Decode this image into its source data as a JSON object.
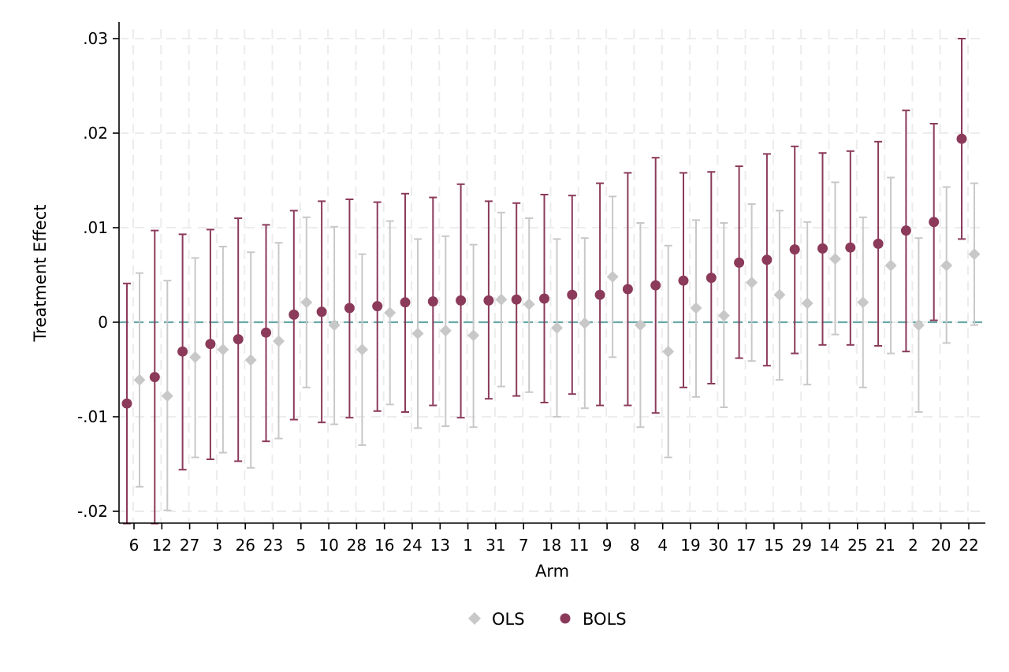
{
  "chart_data": {
    "type": "scatter",
    "subtype": "coefficient plot with 95% intervals",
    "xlabel": "Arm",
    "ylabel": "Treatment Effect",
    "categories": [
      "6",
      "12",
      "27",
      "3",
      "26",
      "23",
      "5",
      "10",
      "28",
      "16",
      "24",
      "13",
      "1",
      "31",
      "7",
      "18",
      "11",
      "9",
      "8",
      "4",
      "19",
      "30",
      "17",
      "15",
      "29",
      "14",
      "25",
      "21",
      "2",
      "20",
      "22"
    ],
    "ylim": [
      -0.021,
      0.0315
    ],
    "y_ticks": [
      -0.02,
      -0.01,
      0,
      0.01,
      0.02,
      0.03
    ],
    "y_tick_labels": [
      "-.02",
      "-.01",
      "0",
      ".01",
      ".02",
      ".03"
    ],
    "grid": true,
    "reference_line": 0,
    "legend_position": "bottom",
    "series": [
      {
        "name": "OLS",
        "marker": "diamond",
        "color": "#c8c8c8",
        "values": [
          -0.0061,
          -0.0078,
          -0.0037,
          -0.0029,
          -0.004,
          -0.002,
          0.0021,
          -0.0003,
          -0.0029,
          0.001,
          -0.0012,
          -0.0009,
          -0.0014,
          0.0024,
          0.0019,
          -0.0006,
          -0.0001,
          0.0048,
          -0.0003,
          -0.0031,
          0.0015,
          0.0007,
          0.0042,
          0.0029,
          0.002,
          0.0067,
          0.0021,
          0.006,
          -0.0003,
          0.006,
          0.0072
        ],
        "lower": [
          -0.0174,
          -0.0199,
          -0.0143,
          -0.0138,
          -0.0154,
          -0.0123,
          -0.0069,
          -0.0108,
          -0.013,
          -0.0087,
          -0.0112,
          -0.011,
          -0.0111,
          -0.0068,
          -0.0074,
          -0.01,
          -0.0091,
          -0.0037,
          -0.0111,
          -0.0143,
          -0.0079,
          -0.009,
          -0.0041,
          -0.0061,
          -0.0066,
          -0.0013,
          -0.0069,
          -0.0033,
          -0.0095,
          -0.0022,
          -0.0003
        ],
        "upper": [
          0.0052,
          0.0044,
          0.0068,
          0.008,
          0.0074,
          0.0084,
          0.0111,
          0.0101,
          0.0072,
          0.0107,
          0.0088,
          0.0091,
          0.0082,
          0.0116,
          0.011,
          0.0088,
          0.0089,
          0.0133,
          0.0105,
          0.0081,
          0.0108,
          0.0105,
          0.0125,
          0.0118,
          0.0106,
          0.0148,
          0.0111,
          0.0153,
          0.0089,
          0.0143,
          0.0147
        ]
      },
      {
        "name": "BOLS",
        "marker": "circle",
        "color": "#8b3a5a",
        "values": [
          -0.0086,
          -0.0058,
          -0.0031,
          -0.0023,
          -0.0018,
          -0.0011,
          0.0008,
          0.0011,
          0.0015,
          0.0017,
          0.0021,
          0.0022,
          0.0023,
          0.0023,
          0.0024,
          0.0025,
          0.0029,
          0.0029,
          0.0035,
          0.0039,
          0.0044,
          0.0047,
          0.0063,
          0.0066,
          0.0077,
          0.0078,
          0.0079,
          0.0083,
          0.0097,
          0.0106,
          0.0194
        ],
        "lower": [
          -0.0213,
          -0.0213,
          -0.0156,
          -0.0145,
          -0.0147,
          -0.0126,
          -0.0103,
          -0.0106,
          -0.0101,
          -0.0094,
          -0.0095,
          -0.0088,
          -0.0101,
          -0.0081,
          -0.0078,
          -0.0085,
          -0.0076,
          -0.0088,
          -0.0088,
          -0.0096,
          -0.0069,
          -0.0065,
          -0.0038,
          -0.0046,
          -0.0033,
          -0.0024,
          -0.0024,
          -0.0025,
          -0.0031,
          0.0002,
          0.0088
        ],
        "upper": [
          0.0041,
          0.0097,
          0.0093,
          0.0098,
          0.011,
          0.0103,
          0.0118,
          0.0128,
          0.013,
          0.0127,
          0.0136,
          0.0132,
          0.0146,
          0.0128,
          0.0126,
          0.0135,
          0.0134,
          0.0147,
          0.0158,
          0.0174,
          0.0158,
          0.0159,
          0.0165,
          0.0178,
          0.0186,
          0.0179,
          0.0181,
          0.0191,
          0.0224,
          0.021,
          0.03
        ]
      }
    ],
    "colors": {
      "grid": "#ececec",
      "reference_line": "#6aa8a8",
      "axis": "#000000"
    }
  }
}
